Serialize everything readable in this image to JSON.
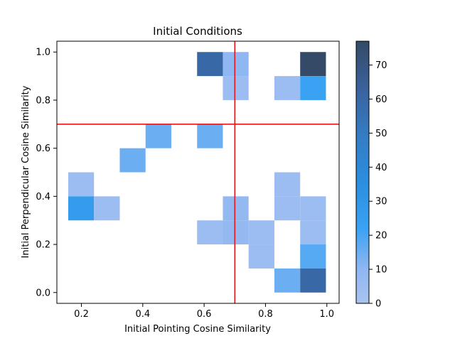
{
  "chart_data": {
    "type": "heatmap",
    "title": "Initial Conditions",
    "xlabel": "Initial Pointing Cosine Similarity",
    "ylabel": "Initial Perpendicular Cosine Similarity",
    "xlim": [
      0.12,
      1.04
    ],
    "ylim": [
      -0.045,
      1.045
    ],
    "x_ticks": [
      0.2,
      0.4,
      0.6,
      0.8,
      1.0
    ],
    "x_tick_labels": [
      "0.2",
      "0.4",
      "0.6",
      "0.8",
      "1.0"
    ],
    "y_ticks": [
      0.0,
      0.2,
      0.4,
      0.6,
      0.8,
      1.0
    ],
    "y_tick_labels": [
      "0.0",
      "0.2",
      "0.4",
      "0.6",
      "0.8",
      "1.0"
    ],
    "bin_edges_x": [
      0.157,
      0.241,
      0.325,
      0.409,
      0.493,
      0.577,
      0.661,
      0.745,
      0.829,
      0.913,
      0.997
    ],
    "bin_edges_y": [
      0.0,
      0.1,
      0.2,
      0.3,
      0.4,
      0.5,
      0.6,
      0.7,
      0.8,
      0.9,
      1.0
    ],
    "cells": [
      {
        "xi": 5,
        "yi": 9,
        "value": 60
      },
      {
        "xi": 6,
        "yi": 9,
        "value": 10
      },
      {
        "xi": 9,
        "yi": 9,
        "value": 77
      },
      {
        "xi": 6,
        "yi": 8,
        "value": 5
      },
      {
        "xi": 8,
        "yi": 8,
        "value": 5
      },
      {
        "xi": 9,
        "yi": 8,
        "value": 22
      },
      {
        "xi": 3,
        "yi": 6,
        "value": 15
      },
      {
        "xi": 5,
        "yi": 6,
        "value": 15
      },
      {
        "xi": 2,
        "yi": 5,
        "value": 15
      },
      {
        "xi": 0,
        "yi": 4,
        "value": 5
      },
      {
        "xi": 8,
        "yi": 4,
        "value": 5
      },
      {
        "xi": 0,
        "yi": 3,
        "value": 27
      },
      {
        "xi": 1,
        "yi": 3,
        "value": 5
      },
      {
        "xi": 6,
        "yi": 3,
        "value": 8
      },
      {
        "xi": 8,
        "yi": 3,
        "value": 5
      },
      {
        "xi": 9,
        "yi": 3,
        "value": 5
      },
      {
        "xi": 5,
        "yi": 2,
        "value": 5
      },
      {
        "xi": 6,
        "yi": 2,
        "value": 8
      },
      {
        "xi": 7,
        "yi": 2,
        "value": 5
      },
      {
        "xi": 9,
        "yi": 2,
        "value": 5
      },
      {
        "xi": 7,
        "yi": 1,
        "value": 5
      },
      {
        "xi": 9,
        "yi": 1,
        "value": 18
      },
      {
        "xi": 8,
        "yi": 0,
        "value": 15
      },
      {
        "xi": 9,
        "yi": 0,
        "value": 60
      }
    ],
    "reference_lines": {
      "vertical_x": 0.7,
      "horizontal_y": 0.7,
      "color": "#e8141a"
    },
    "colorbar": {
      "min": 0,
      "max": 77,
      "ticks": [
        0,
        10,
        20,
        30,
        40,
        50,
        60,
        70
      ],
      "tick_labels": [
        "0",
        "10",
        "20",
        "30",
        "40",
        "50",
        "60",
        "70"
      ],
      "color_stops": [
        {
          "v": 0,
          "color": "#a9c3ef"
        },
        {
          "v": 10,
          "color": "#8fb7f2"
        },
        {
          "v": 22,
          "color": "#3aa2f3"
        },
        {
          "v": 35,
          "color": "#2c8fe0"
        },
        {
          "v": 50,
          "color": "#347bc2"
        },
        {
          "v": 62,
          "color": "#3a64a0"
        },
        {
          "v": 77,
          "color": "#344a67"
        }
      ]
    },
    "grid": false,
    "legend": "none"
  }
}
